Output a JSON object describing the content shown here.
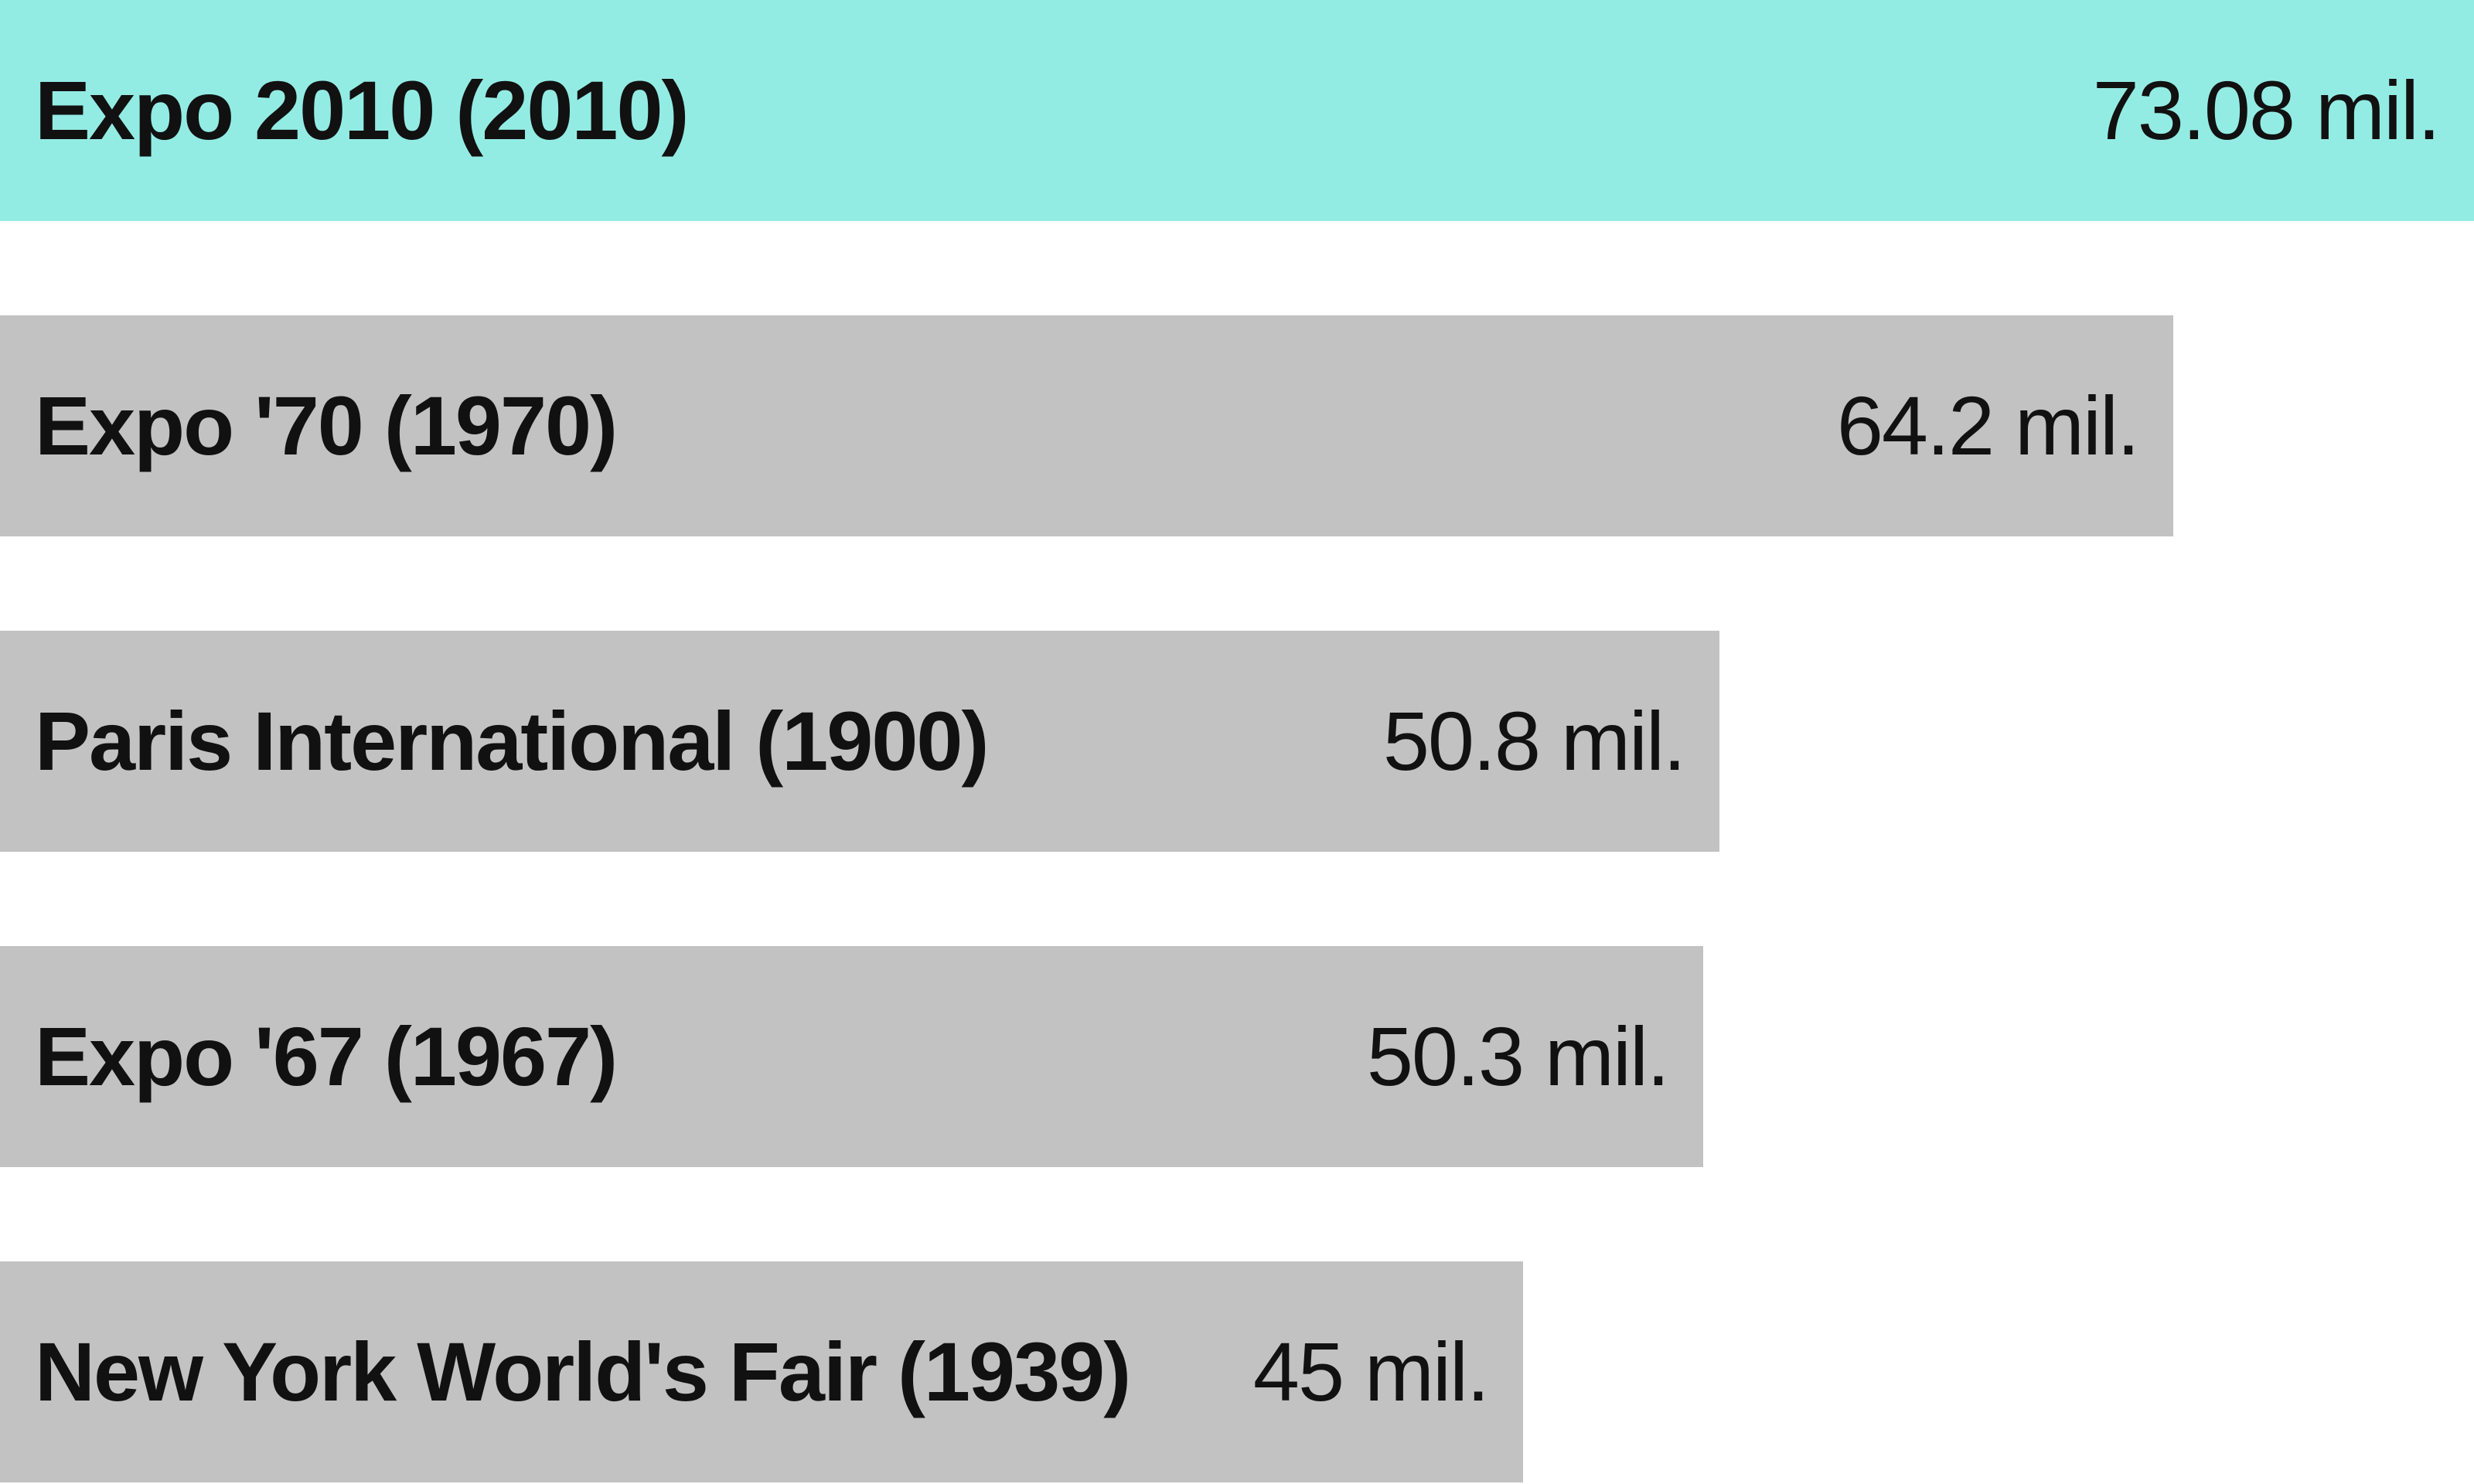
{
  "chart_data": {
    "type": "bar",
    "orientation": "horizontal",
    "categories": [
      "Expo 2010 (2010)",
      "Expo '70 (1970)",
      "Paris International (1900)",
      "Expo '67 (1967)",
      "New York World's Fair (1939)"
    ],
    "values": [
      73.08,
      64.2,
      50.8,
      50.3,
      45
    ],
    "value_labels": [
      "73.08 mil.",
      "64.2 mil.",
      "50.8 mil.",
      "50.3 mil.",
      "45 mil."
    ],
    "highlight_index": 0,
    "colors": {
      "highlight": "#93ece4",
      "default": "#c2c2c2",
      "text": "#111111"
    },
    "xlim": [
      0,
      73.08
    ],
    "grid": false,
    "legend": "none"
  }
}
